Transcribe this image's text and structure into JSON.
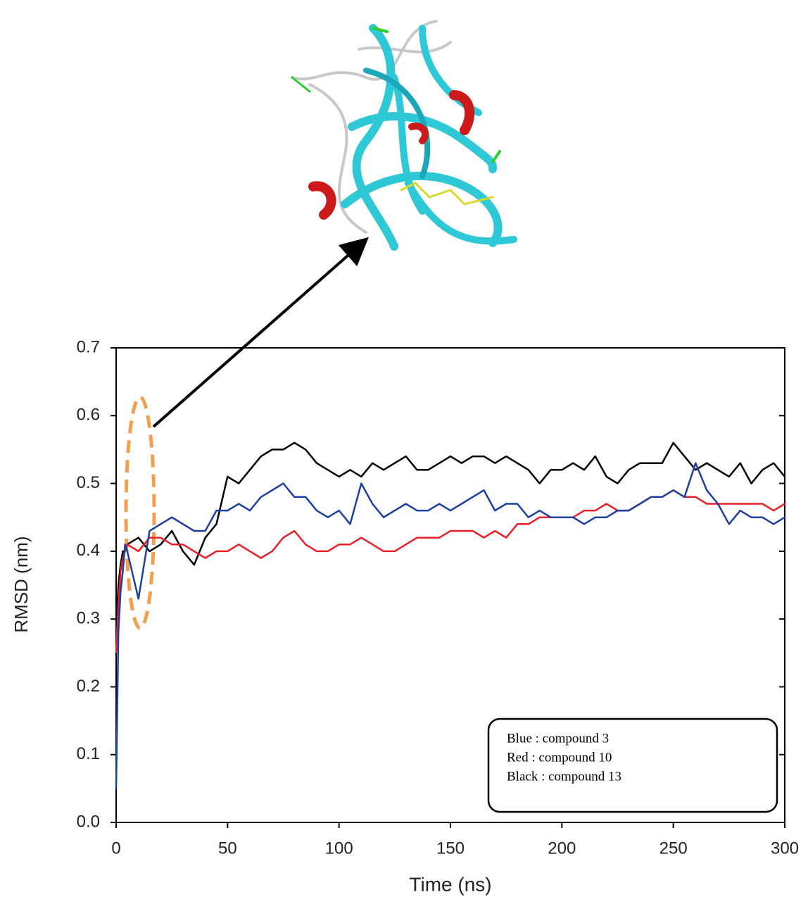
{
  "chart_data": {
    "type": "line",
    "xlabel": "Time (ns)",
    "ylabel": "RMSD (nm)",
    "x": [
      0,
      1,
      2,
      3,
      4,
      5,
      10,
      15,
      20,
      25,
      30,
      35,
      40,
      45,
      50,
      55,
      60,
      65,
      70,
      75,
      80,
      85,
      90,
      95,
      100,
      105,
      110,
      115,
      120,
      125,
      130,
      135,
      140,
      145,
      150,
      155,
      160,
      165,
      170,
      175,
      180,
      185,
      190,
      195,
      200,
      205,
      210,
      215,
      220,
      225,
      230,
      235,
      240,
      245,
      250,
      255,
      260,
      265,
      270,
      275,
      280,
      285,
      290,
      295,
      300
    ],
    "series": [
      {
        "name": "Black : compound 13",
        "color": "#000000",
        "values": [
          0.28,
          0.35,
          0.38,
          0.4,
          0.4,
          0.41,
          0.42,
          0.4,
          0.41,
          0.43,
          0.4,
          0.38,
          0.42,
          0.44,
          0.51,
          0.5,
          0.52,
          0.54,
          0.55,
          0.55,
          0.56,
          0.55,
          0.53,
          0.52,
          0.51,
          0.52,
          0.51,
          0.53,
          0.52,
          0.53,
          0.54,
          0.52,
          0.52,
          0.53,
          0.54,
          0.53,
          0.54,
          0.54,
          0.53,
          0.54,
          0.53,
          0.52,
          0.5,
          0.52,
          0.52,
          0.53,
          0.52,
          0.54,
          0.51,
          0.5,
          0.52,
          0.53,
          0.53,
          0.53,
          0.56,
          0.54,
          0.52,
          0.53,
          0.52,
          0.51,
          0.53,
          0.5,
          0.52,
          0.53,
          0.51
        ]
      },
      {
        "name": "Red : compound 10",
        "color": "#e8202a",
        "values": [
          0.25,
          0.32,
          0.37,
          0.39,
          0.4,
          0.41,
          0.4,
          0.42,
          0.42,
          0.41,
          0.41,
          0.4,
          0.39,
          0.4,
          0.4,
          0.41,
          0.4,
          0.39,
          0.4,
          0.42,
          0.43,
          0.41,
          0.4,
          0.4,
          0.41,
          0.41,
          0.42,
          0.41,
          0.4,
          0.4,
          0.41,
          0.42,
          0.42,
          0.42,
          0.43,
          0.43,
          0.43,
          0.42,
          0.43,
          0.42,
          0.44,
          0.44,
          0.45,
          0.45,
          0.45,
          0.45,
          0.46,
          0.46,
          0.47,
          0.46,
          0.46,
          0.47,
          0.48,
          0.48,
          0.49,
          0.48,
          0.48,
          0.47,
          0.47,
          0.47,
          0.47,
          0.47,
          0.47,
          0.46,
          0.47
        ]
      },
      {
        "name": "Blue : compound 3",
        "color": "#1f3fa0",
        "values": [
          0.05,
          0.28,
          0.34,
          0.37,
          0.41,
          0.4,
          0.33,
          0.43,
          0.44,
          0.45,
          0.44,
          0.43,
          0.43,
          0.46,
          0.46,
          0.47,
          0.46,
          0.48,
          0.49,
          0.5,
          0.48,
          0.48,
          0.46,
          0.45,
          0.46,
          0.44,
          0.5,
          0.47,
          0.45,
          0.46,
          0.47,
          0.46,
          0.46,
          0.47,
          0.46,
          0.47,
          0.48,
          0.49,
          0.46,
          0.47,
          0.47,
          0.45,
          0.46,
          0.45,
          0.45,
          0.45,
          0.44,
          0.45,
          0.45,
          0.46,
          0.46,
          0.47,
          0.48,
          0.48,
          0.49,
          0.48,
          0.53,
          0.49,
          0.47,
          0.44,
          0.46,
          0.45,
          0.45,
          0.44,
          0.45
        ]
      }
    ],
    "legend_order": [
      "Blue : compound 3",
      "Red : compound 10",
      "Black : compound 13"
    ],
    "xlim": [
      0,
      300
    ],
    "xticks": [
      0,
      50,
      100,
      150,
      200,
      250,
      300
    ],
    "ylim": [
      0,
      0.7
    ],
    "yticks": [
      {
        "value": 0,
        "label": "0.0"
      },
      0.1,
      0.2,
      0.3,
      0.4,
      0.5,
      0.6,
      0.7
    ],
    "legend_position": "lower right"
  }
}
